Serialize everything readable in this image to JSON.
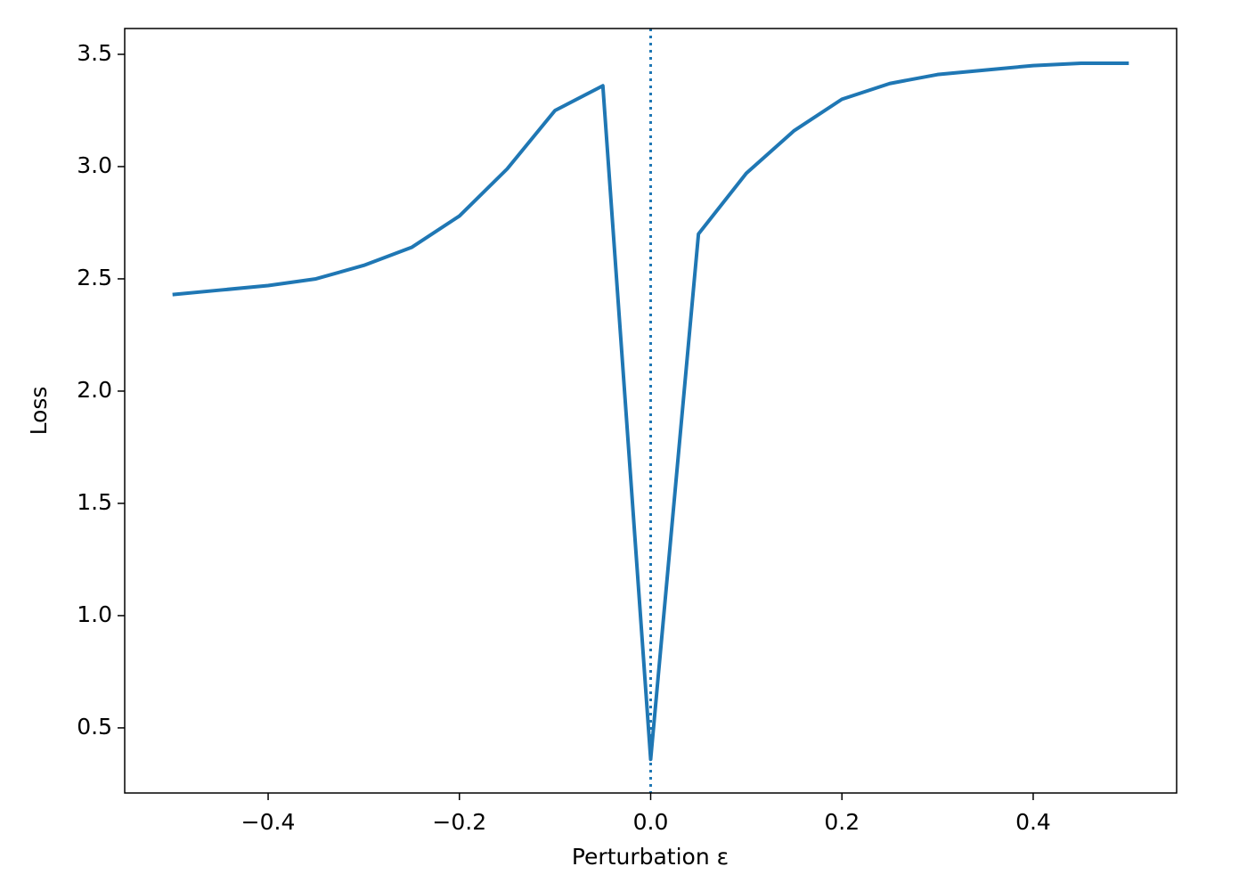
{
  "chart_data": {
    "type": "line",
    "xlabel": "Perturbation ε",
    "ylabel": "Loss",
    "x": [
      -0.5,
      -0.45,
      -0.4,
      -0.35,
      -0.3,
      -0.25,
      -0.2,
      -0.15,
      -0.1,
      -0.05,
      0,
      0.05,
      0.1,
      0.15,
      0.2,
      0.25,
      0.3,
      0.35,
      0.4,
      0.45,
      0.5
    ],
    "values": [
      2.43,
      2.45,
      2.47,
      2.5,
      2.56,
      2.64,
      2.78,
      2.99,
      3.25,
      3.36,
      0.36,
      2.7,
      2.97,
      3.16,
      3.3,
      3.37,
      3.41,
      3.43,
      3.45,
      3.46,
      3.46
    ],
    "color": "#1f77b4",
    "vline_x": 0,
    "xlim": [
      -0.55,
      0.55
    ],
    "ylim": [
      0.21,
      3.615
    ],
    "xticks": [
      {
        "value": -0.4,
        "label": "−0.4"
      },
      {
        "value": -0.2,
        "label": "−0.2"
      },
      {
        "value": 0,
        "label": "0.0"
      },
      0.2,
      0.4
    ],
    "yticks": [
      0.5,
      {
        "value": 1,
        "label": "1.0"
      },
      1.5,
      {
        "value": 2,
        "label": "2.0"
      },
      2.5,
      {
        "value": 3,
        "label": "3.0"
      },
      3.5
    ]
  }
}
